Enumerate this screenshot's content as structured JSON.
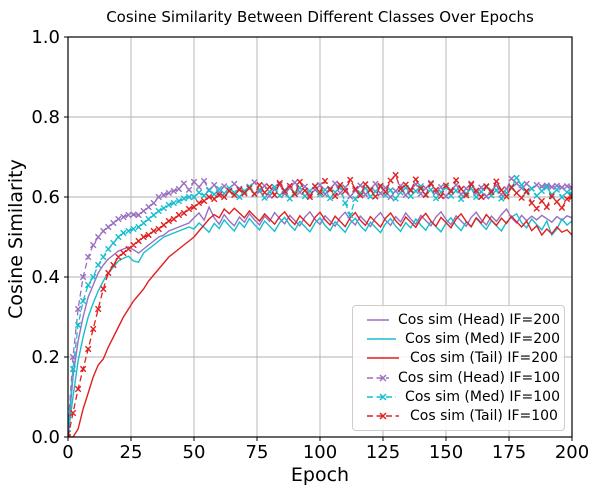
{
  "chart_data": {
    "type": "line",
    "title": "Cosine Similarity Between Different Classes Over Epochs",
    "xlabel": "Epoch",
    "ylabel": "Cosine Similarity",
    "xlim": [
      0,
      200
    ],
    "ylim": [
      0.0,
      1.0
    ],
    "xticks": [
      0,
      25,
      50,
      75,
      100,
      125,
      150,
      175,
      200
    ],
    "yticks": [
      0.0,
      0.2,
      0.4,
      0.6,
      0.8,
      1.0
    ],
    "ytick_labels": [
      "0.0",
      "0.2",
      "0.4",
      "0.6",
      "0.8",
      "1.0"
    ],
    "grid": true,
    "grid_color": "#b0b0b0",
    "spine_color": "#000000",
    "legend_position": "lower right",
    "x": [
      0,
      2,
      4,
      6,
      8,
      10,
      12,
      14,
      16,
      18,
      20,
      22,
      24,
      26,
      28,
      30,
      32,
      34,
      36,
      38,
      40,
      42,
      44,
      46,
      48,
      50,
      52,
      54,
      56,
      58,
      60,
      62,
      64,
      66,
      68,
      70,
      72,
      74,
      76,
      78,
      80,
      82,
      84,
      86,
      88,
      90,
      92,
      94,
      96,
      98,
      100,
      102,
      104,
      106,
      108,
      110,
      112,
      114,
      116,
      118,
      120,
      122,
      124,
      126,
      128,
      130,
      132,
      134,
      136,
      138,
      140,
      142,
      144,
      146,
      148,
      150,
      152,
      154,
      156,
      158,
      160,
      162,
      164,
      166,
      168,
      170,
      172,
      174,
      176,
      178,
      180,
      182,
      184,
      186,
      188,
      190,
      192,
      194,
      196,
      198,
      200
    ],
    "series": [
      {
        "label": "Cos sim (Head) IF=200",
        "color": "#9a6fc0",
        "linestyle": "solid",
        "marker": "none",
        "values": [
          0.01,
          0.15,
          0.24,
          0.3,
          0.35,
          0.38,
          0.41,
          0.43,
          0.445,
          0.455,
          0.465,
          0.47,
          0.475,
          0.468,
          0.46,
          0.47,
          0.48,
          0.49,
          0.5,
          0.505,
          0.515,
          0.52,
          0.525,
          0.53,
          0.535,
          0.548,
          0.56,
          0.542,
          0.575,
          0.548,
          0.532,
          0.556,
          0.54,
          0.528,
          0.55,
          0.537,
          0.558,
          0.543,
          0.53,
          0.552,
          0.539,
          0.561,
          0.546,
          0.533,
          0.554,
          0.541,
          0.528,
          0.55,
          0.563,
          0.544,
          0.531,
          0.553,
          0.54,
          0.527,
          0.549,
          0.562,
          0.543,
          0.53,
          0.552,
          0.539,
          0.526,
          0.548,
          0.561,
          0.542,
          0.529,
          0.551,
          0.538,
          0.56,
          0.545,
          0.532,
          0.554,
          0.541,
          0.528,
          0.55,
          0.563,
          0.544,
          0.531,
          0.553,
          0.54,
          0.527,
          0.549,
          0.562,
          0.543,
          0.53,
          0.552,
          0.539,
          0.556,
          0.57,
          0.548,
          0.535,
          0.554,
          0.541,
          0.552,
          0.543,
          0.554,
          0.546,
          0.537,
          0.551,
          0.542,
          0.553,
          0.548
        ]
      },
      {
        "label": "Cos sim (Med) IF=200",
        "color": "#17becf",
        "linestyle": "solid",
        "marker": "none",
        "values": [
          0.005,
          0.1,
          0.19,
          0.25,
          0.3,
          0.335,
          0.365,
          0.39,
          0.41,
          0.425,
          0.44,
          0.447,
          0.452,
          0.44,
          0.437,
          0.46,
          0.47,
          0.48,
          0.49,
          0.5,
          0.505,
          0.51,
          0.515,
          0.52,
          0.525,
          0.52,
          0.535,
          0.524,
          0.512,
          0.534,
          0.521,
          0.543,
          0.528,
          0.515,
          0.537,
          0.524,
          0.546,
          0.531,
          0.518,
          0.54,
          0.527,
          0.514,
          0.536,
          0.549,
          0.53,
          0.517,
          0.539,
          0.526,
          0.513,
          0.535,
          0.548,
          0.529,
          0.516,
          0.538,
          0.525,
          0.512,
          0.534,
          0.547,
          0.528,
          0.515,
          0.537,
          0.524,
          0.511,
          0.533,
          0.546,
          0.527,
          0.514,
          0.536,
          0.523,
          0.545,
          0.53,
          0.517,
          0.539,
          0.526,
          0.513,
          0.535,
          0.548,
          0.529,
          0.516,
          0.538,
          0.525,
          0.547,
          0.532,
          0.519,
          0.541,
          0.528,
          0.515,
          0.537,
          0.55,
          0.558,
          0.536,
          0.523,
          0.545,
          0.531,
          0.518,
          0.54,
          0.505,
          0.52,
          0.545,
          0.53,
          0.54
        ]
      },
      {
        "label": "Cos sim (Tail) IF=200",
        "color": "#e02020",
        "linestyle": "solid",
        "marker": "none",
        "values": [
          0.0,
          0.0,
          0.02,
          0.07,
          0.11,
          0.15,
          0.18,
          0.195,
          0.225,
          0.25,
          0.275,
          0.3,
          0.32,
          0.34,
          0.355,
          0.37,
          0.39,
          0.405,
          0.42,
          0.435,
          0.45,
          0.46,
          0.47,
          0.48,
          0.49,
          0.5,
          0.515,
          0.53,
          0.545,
          0.556,
          0.548,
          0.57,
          0.558,
          0.572,
          0.56,
          0.548,
          0.565,
          0.552,
          0.54,
          0.558,
          0.545,
          0.532,
          0.551,
          0.563,
          0.544,
          0.531,
          0.553,
          0.54,
          0.527,
          0.549,
          0.562,
          0.543,
          0.53,
          0.552,
          0.539,
          0.526,
          0.548,
          0.561,
          0.542,
          0.529,
          0.551,
          0.538,
          0.525,
          0.547,
          0.56,
          0.541,
          0.528,
          0.55,
          0.537,
          0.524,
          0.546,
          0.559,
          0.54,
          0.527,
          0.549,
          0.536,
          0.523,
          0.545,
          0.558,
          0.539,
          0.526,
          0.548,
          0.535,
          0.556,
          0.542,
          0.529,
          0.547,
          0.534,
          0.552,
          0.538,
          0.525,
          0.54,
          0.516,
          0.528,
          0.505,
          0.52,
          0.508,
          0.525,
          0.512,
          0.518,
          0.505
        ]
      },
      {
        "label": "Cos sim (Head) IF=100",
        "color": "#9a6fc0",
        "linestyle": "dashed",
        "marker": "x",
        "values": [
          0.02,
          0.2,
          0.32,
          0.4,
          0.45,
          0.48,
          0.5,
          0.515,
          0.525,
          0.535,
          0.545,
          0.55,
          0.555,
          0.556,
          0.555,
          0.565,
          0.575,
          0.585,
          0.6,
          0.605,
          0.61,
          0.615,
          0.62,
          0.634,
          0.618,
          0.638,
          0.625,
          0.64,
          0.618,
          0.63,
          0.611,
          0.627,
          0.616,
          0.633,
          0.621,
          0.609,
          0.625,
          0.637,
          0.614,
          0.628,
          0.603,
          0.619,
          0.631,
          0.608,
          0.622,
          0.636,
          0.612,
          0.626,
          0.605,
          0.618,
          0.63,
          0.607,
          0.621,
          0.634,
          0.61,
          0.624,
          0.601,
          0.616,
          0.629,
          0.606,
          0.62,
          0.633,
          0.609,
          0.623,
          0.6,
          0.615,
          0.628,
          0.605,
          0.619,
          0.632,
          0.608,
          0.622,
          0.635,
          0.611,
          0.625,
          0.602,
          0.617,
          0.63,
          0.607,
          0.621,
          0.634,
          0.61,
          0.624,
          0.601,
          0.616,
          0.629,
          0.606,
          0.62,
          0.646,
          0.634,
          0.622,
          0.633,
          0.621,
          0.63,
          0.626,
          0.629,
          0.625,
          0.628,
          0.624,
          0.627,
          0.623
        ]
      },
      {
        "label": "Cos sim (Med) IF=100",
        "color": "#17becf",
        "linestyle": "dashed",
        "marker": "x",
        "values": [
          0.01,
          0.17,
          0.28,
          0.34,
          0.38,
          0.4,
          0.43,
          0.45,
          0.47,
          0.485,
          0.5,
          0.51,
          0.515,
          0.52,
          0.525,
          0.535,
          0.545,
          0.555,
          0.565,
          0.572,
          0.58,
          0.585,
          0.59,
          0.596,
          0.6,
          0.6,
          0.611,
          0.604,
          0.616,
          0.607,
          0.62,
          0.609,
          0.622,
          0.611,
          0.6,
          0.615,
          0.626,
          0.607,
          0.619,
          0.598,
          0.613,
          0.625,
          0.604,
          0.617,
          0.596,
          0.611,
          0.623,
          0.602,
          0.615,
          0.627,
          0.606,
          0.618,
          0.597,
          0.612,
          0.624,
          0.585,
          0.555,
          0.595,
          0.61,
          0.622,
          0.601,
          0.614,
          0.626,
          0.605,
          0.617,
          0.596,
          0.611,
          0.623,
          0.602,
          0.615,
          0.627,
          0.606,
          0.618,
          0.597,
          0.612,
          0.624,
          0.603,
          0.616,
          0.595,
          0.609,
          0.621,
          0.6,
          0.613,
          0.625,
          0.604,
          0.617,
          0.596,
          0.61,
          0.622,
          0.648,
          0.63,
          0.612,
          0.621,
          0.603,
          0.615,
          0.624,
          0.606,
          0.618,
          0.6,
          0.612,
          0.607
        ]
      },
      {
        "label": "Cos sim (Tail) IF=100",
        "color": "#e02020",
        "linestyle": "dashed",
        "marker": "x",
        "values": [
          0.0,
          0.06,
          0.12,
          0.17,
          0.22,
          0.27,
          0.32,
          0.37,
          0.41,
          0.43,
          0.45,
          0.46,
          0.47,
          0.48,
          0.49,
          0.5,
          0.505,
          0.515,
          0.52,
          0.53,
          0.54,
          0.545,
          0.555,
          0.56,
          0.57,
          0.575,
          0.585,
          0.59,
          0.6,
          0.595,
          0.605,
          0.6,
          0.615,
          0.605,
          0.618,
          0.61,
          0.622,
          0.608,
          0.63,
          0.611,
          0.625,
          0.605,
          0.635,
          0.614,
          0.628,
          0.607,
          0.638,
          0.616,
          0.6,
          0.627,
          0.612,
          0.64,
          0.618,
          0.602,
          0.63,
          0.615,
          0.643,
          0.62,
          0.604,
          0.632,
          0.617,
          0.601,
          0.628,
          0.613,
          0.641,
          0.655,
          0.62,
          0.631,
          0.616,
          0.644,
          0.621,
          0.605,
          0.633,
          0.618,
          0.602,
          0.629,
          0.614,
          0.642,
          0.62,
          0.604,
          0.631,
          0.616,
          0.6,
          0.627,
          0.612,
          0.639,
          0.617,
          0.601,
          0.625,
          0.61,
          0.598,
          0.615,
          0.585,
          0.571,
          0.59,
          0.575,
          0.602,
          0.588,
          0.573,
          0.595,
          0.6
        ]
      }
    ]
  }
}
